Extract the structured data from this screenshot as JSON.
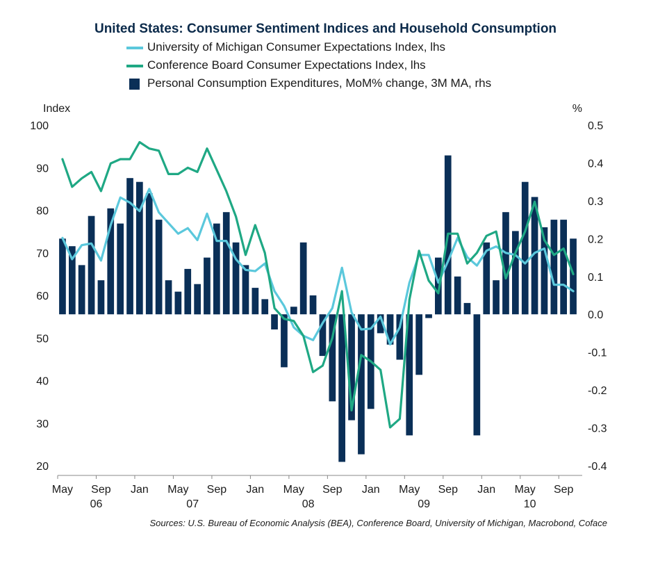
{
  "chart_data": {
    "type": "bar+line",
    "title": "United States: Consumer Sentiment Indices and Household Consumption",
    "left_axis": {
      "label": "Index",
      "range": [
        20,
        100
      ],
      "ticks": [
        100,
        90,
        80,
        70,
        60,
        50,
        40,
        30,
        20
      ]
    },
    "right_axis": {
      "label": "%",
      "range": [
        -0.4,
        0.5
      ],
      "ticks": [
        "0.5",
        "0.4",
        "0.3",
        "0.2",
        "0.1",
        "0.0",
        "-0.1",
        "-0.2",
        "-0.3",
        "-0.4"
      ]
    },
    "x_axis": {
      "month_labels": [
        "May",
        "Sep",
        "Jan",
        "May",
        "Sep",
        "Jan",
        "May",
        "Sep",
        "Jan",
        "May",
        "Sep",
        "Jan",
        "May",
        "Sep"
      ],
      "year_labels": [
        "06",
        "07",
        "08",
        "09",
        "10"
      ]
    },
    "months": [
      "2006-05",
      "2006-06",
      "2006-07",
      "2006-08",
      "2006-09",
      "2006-10",
      "2006-11",
      "2006-12",
      "2007-01",
      "2007-02",
      "2007-03",
      "2007-04",
      "2007-05",
      "2007-06",
      "2007-07",
      "2007-08",
      "2007-09",
      "2007-10",
      "2007-11",
      "2007-12",
      "2008-01",
      "2008-02",
      "2008-03",
      "2008-04",
      "2008-05",
      "2008-06",
      "2008-07",
      "2008-08",
      "2008-09",
      "2008-10",
      "2008-11",
      "2008-12",
      "2009-01",
      "2009-02",
      "2009-03",
      "2009-04",
      "2009-05",
      "2009-06",
      "2009-07",
      "2009-08",
      "2009-09",
      "2009-10",
      "2009-11",
      "2009-12",
      "2010-01",
      "2010-02",
      "2010-03",
      "2010-04",
      "2010-05",
      "2010-06",
      "2010-07",
      "2010-08",
      "2010-09",
      "2010-10"
    ],
    "series": [
      {
        "name": "University of Michigan Consumer Expectations Index, lhs",
        "type": "line",
        "axis": "left",
        "color": "#5bc8dc",
        "values": [
          73.5,
          68.5,
          71.8,
          72.2,
          68.2,
          76.5,
          83.0,
          81.8,
          79.8,
          85.0,
          79.5,
          77.0,
          74.5,
          75.8,
          73.0,
          79.2,
          72.8,
          72.8,
          68.5,
          66.0,
          65.7,
          67.5,
          61.0,
          57.5,
          52.5,
          50.5,
          49.5,
          53.5,
          57.0,
          66.5,
          56.0,
          52.0,
          52.2,
          55.0,
          48.5,
          52.5,
          63.0,
          69.5,
          69.5,
          63.0,
          68.0,
          73.5,
          69.0,
          67.0,
          70.5,
          71.5,
          70.0,
          69.5,
          67.5,
          70.0,
          71.0,
          62.5,
          62.5,
          61.0
        ]
      },
      {
        "name": "Conference Board Consumer Expectations Index, lhs",
        "type": "line",
        "axis": "left",
        "color": "#1fa884",
        "values": [
          92.0,
          85.5,
          87.5,
          89.0,
          84.5,
          91.0,
          92.0,
          92.0,
          96.0,
          94.5,
          94.0,
          88.5,
          88.5,
          90.0,
          89.0,
          94.5,
          89.5,
          84.5,
          78.5,
          69.5,
          76.5,
          70.0,
          57.0,
          54.5,
          54.0,
          50.5,
          42.0,
          43.5,
          50.0,
          61.0,
          33.0,
          46.0,
          44.5,
          42.5,
          29.0,
          31.0,
          59.0,
          70.5,
          63.5,
          60.5,
          74.5,
          74.5,
          67.5,
          70.0,
          74.0,
          75.0,
          64.0,
          70.0,
          75.0,
          82.0,
          73.0,
          69.5,
          71.0,
          65.0
        ]
      },
      {
        "name": "Personal Consumption Expenditures, MoM% change, 3M MA, rhs",
        "type": "bar",
        "axis": "right",
        "color": "#0a2f57",
        "values": [
          0.2,
          0.18,
          0.13,
          0.26,
          0.09,
          0.28,
          0.24,
          0.36,
          0.35,
          0.32,
          0.25,
          0.09,
          0.06,
          0.12,
          0.08,
          0.15,
          0.24,
          0.27,
          0.19,
          0.13,
          0.07,
          0.04,
          -0.04,
          -0.14,
          0.02,
          0.19,
          0.05,
          -0.11,
          -0.23,
          -0.39,
          -0.28,
          -0.37,
          -0.25,
          -0.05,
          -0.08,
          -0.12,
          -0.32,
          -0.16,
          -0.01,
          0.15,
          0.42,
          0.1,
          0.03,
          -0.32,
          0.19,
          0.09,
          0.27,
          0.22,
          0.35,
          0.31,
          0.23,
          0.25,
          0.25,
          0.2
        ]
      }
    ],
    "grid": false,
    "legend_position": "top"
  },
  "source_note": "Sources: U.S. Bureau of Economic Analysis (BEA), Conference Board, University of Michigan, Macrobond, Coface"
}
